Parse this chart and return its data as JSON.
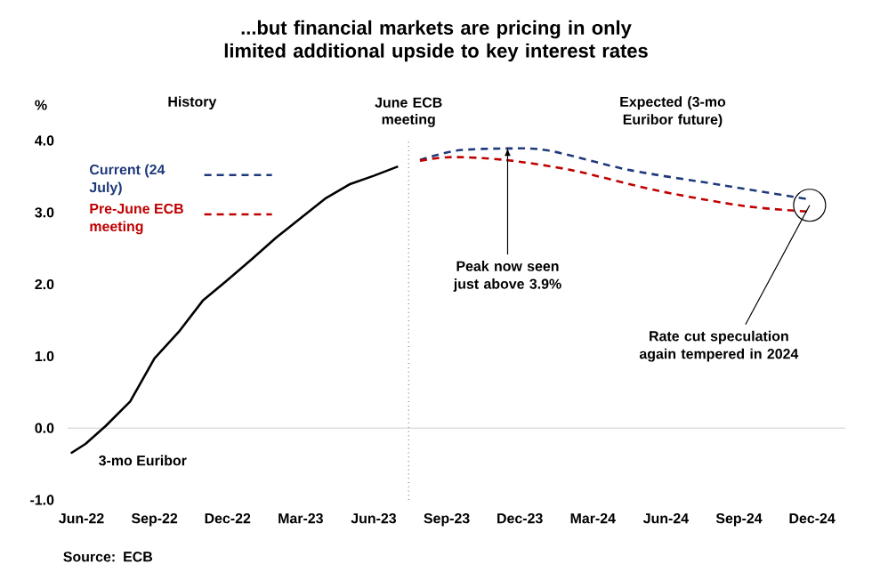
{
  "chart_data": {
    "type": "line",
    "title": "...but financial markets are pricing in only limited additional upside to key interest rates",
    "ylabel": "%",
    "xlim": [
      "2022-05-14",
      "2025-01-12"
    ],
    "ylim": [
      -1,
      4
    ],
    "yticks": [
      {
        "value": -1,
        "label": "-1.0"
      },
      {
        "value": 0,
        "label": "0.0"
      },
      {
        "value": 1,
        "label": "1.0"
      },
      {
        "value": 2,
        "label": "2.0"
      },
      {
        "value": 3,
        "label": "3.0"
      },
      {
        "value": 4,
        "label": "4.0"
      }
    ],
    "xticks": [
      {
        "value": "2022-06",
        "label": "Jun-22"
      },
      {
        "value": "2022-09",
        "label": "Sep-22"
      },
      {
        "value": "2022-12",
        "label": "Dec-22"
      },
      {
        "value": "2023-03",
        "label": "Mar-23"
      },
      {
        "value": "2023-06",
        "label": "Jun-23"
      },
      {
        "value": "2023-09",
        "label": "Sep-23"
      },
      {
        "value": "2023-12",
        "label": "Dec-23"
      },
      {
        "value": "2024-03",
        "label": "Mar-24"
      },
      {
        "value": "2024-06",
        "label": "Jun-24"
      },
      {
        "value": "2024-09",
        "label": "Sep-24"
      },
      {
        "value": "2024-12",
        "label": "Dec-24"
      }
    ],
    "grid": false,
    "legend": "top left",
    "marker": "none",
    "series": [
      {
        "name": "3-mo Euribor",
        "color": "#000000",
        "line_style": "solid",
        "x": [
          "2022-05-18",
          "2022-06-06",
          "2022-07-01",
          "2022-08-01",
          "2022-09-01",
          "2022-10-01",
          "2022-11-01",
          "2022-12-01",
          "2023-01-01",
          "2023-02-01",
          "2023-03-01",
          "2023-04-01",
          "2023-05-01",
          "2023-06-01",
          "2023-07-01"
        ],
        "values": [
          -0.35,
          -0.22,
          0.03,
          0.37,
          0.97,
          1.34,
          1.78,
          2.06,
          2.35,
          2.65,
          2.92,
          3.19,
          3.39,
          3.51,
          3.64
        ]
      },
      {
        "name": "Current (24 July)",
        "color": "#1f3a7a",
        "line_style": "dashed",
        "x": [
          "2023-07-28",
          "2023-09-13",
          "2023-11-16",
          "2024-01-07",
          "2024-04-16",
          "2024-08-10",
          "2024-11-28"
        ],
        "values": [
          3.73,
          3.86,
          3.89,
          3.86,
          3.59,
          3.38,
          3.18
        ]
      },
      {
        "name": "Pre-June ECB meeting",
        "color": "#c00000",
        "line_style": "dashed",
        "x": [
          "2023-07-28",
          "2023-09-07",
          "2023-11-13",
          "2024-02-04",
          "2024-05-22",
          "2024-09-07",
          "2024-11-28"
        ],
        "values": [
          3.72,
          3.77,
          3.73,
          3.59,
          3.3,
          3.09,
          3.01
        ]
      }
    ],
    "ref_lines": [
      {
        "axis": "x",
        "value": "2023-07-14",
        "label": "June ECB meeting",
        "color": "#000000",
        "line_style": "dotted"
      },
      {
        "axis": "y",
        "value": 0,
        "color": "#bfbfbf",
        "line_style": "solid"
      }
    ],
    "annotations": [
      "History",
      "Expected (3-mo Euribor future)",
      "Source: ECB",
      {
        "text": "Peak now seen just above 3.9%",
        "x": "2023-11-16",
        "y": 3.9
      },
      {
        "text": "Rate cut speculation again tempered in 2024",
        "x": "2024-11-28",
        "y": 3.1
      }
    ]
  }
}
